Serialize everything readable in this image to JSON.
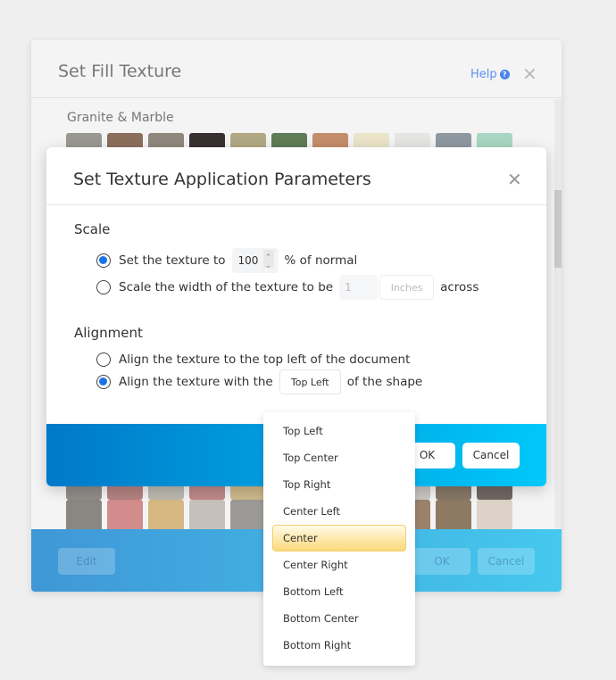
{
  "outer": {
    "title": "Set Fill Texture",
    "help_label": "Help",
    "category": "Granite & Marble",
    "swatch_row1": [
      "#9b9894",
      "#8c6e5c",
      "#8f887c",
      "#37312f",
      "#b1a985",
      "#5e7c56",
      "#c58d6b",
      "#ebe4c8",
      "#e5e5e3",
      "#8e98a0",
      "#a8d6c2"
    ],
    "swatch_row2": [
      "#8f8c88",
      "#b48282",
      "#bcb8b0",
      "#bd8888",
      "#cdb88a",
      "#ccc",
      "#bbb",
      "#aaa",
      "#c8c6c2",
      "#867665",
      "#6f6660"
    ],
    "swatch_row3": [
      "#8a8680",
      "#d28c8c",
      "#d6b880",
      "#c7c0ba",
      "#9c9a97",
      "#aaa",
      "#bbb",
      "#a0a080",
      "#9a826a",
      "#8e7a62",
      "#dcd2c8"
    ],
    "edit_label": "Edit",
    "ok_label": "OK",
    "cancel_label": "Cancel"
  },
  "inner": {
    "title": "Set Texture Application Parameters",
    "scale_heading": "Scale",
    "scale_opt1_before": "Set the texture to",
    "scale_value": "100",
    "scale_opt1_after": "% of normal",
    "scale_opt2_before": "Scale the width of the texture to be",
    "width_value": "1",
    "unit": "Inches",
    "scale_opt2_after": "across",
    "align_heading": "Alignment",
    "align_opt1": "Align the texture to the top left of the document",
    "align_opt2_before": "Align the texture with the",
    "align_value": "Top Left",
    "align_opt2_after": "of the shape",
    "scale_selected": 1,
    "align_selected": 2,
    "ok_label": "OK",
    "cancel_label": "Cancel"
  },
  "dropdown": {
    "options": [
      "Top Left",
      "Top Center",
      "Top Right",
      "Center Left",
      "Center",
      "Center Right",
      "Bottom Left",
      "Bottom Center",
      "Bottom Right"
    ],
    "highlighted": "Center"
  }
}
